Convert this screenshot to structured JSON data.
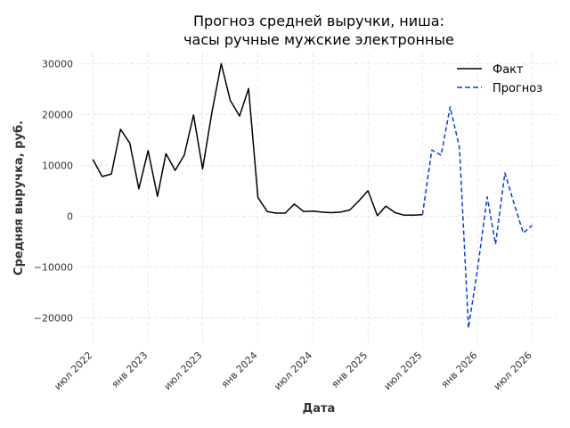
{
  "chart_data": {
    "type": "line",
    "title": [
      "Прогноз средней выручки, ниша:",
      "часы ручные мужские электронные"
    ],
    "xlabel": "Дата",
    "ylabel": "Средняя выручка, руб.",
    "ylim": [
      -25000,
      32000
    ],
    "xlim": [
      "2022-05-20",
      "2026-09-20"
    ],
    "yticks": [
      -20000,
      -10000,
      0,
      10000,
      20000,
      30000
    ],
    "ytick_labels": [
      "−20000",
      "−10000",
      "0",
      "10000",
      "20000",
      "30000"
    ],
    "xticks": [
      {
        "date": "2022-07-01",
        "label": "июл 2022"
      },
      {
        "date": "2023-01-01",
        "label": "янв 2023"
      },
      {
        "date": "2023-07-01",
        "label": "июл 2023"
      },
      {
        "date": "2024-01-01",
        "label": "янв 2024"
      },
      {
        "date": "2024-07-01",
        "label": "июл 2024"
      },
      {
        "date": "2025-01-01",
        "label": "янв 2025"
      },
      {
        "date": "2025-07-01",
        "label": "июл 2025"
      },
      {
        "date": "2026-01-01",
        "label": "янв 2026"
      },
      {
        "date": "2026-07-01",
        "label": "июл 2026"
      }
    ],
    "grid": true,
    "legend_position": "top-right",
    "series": [
      {
        "name": "Факт",
        "color": "#000000",
        "dash": "solid",
        "x": [
          "2022-07-01",
          "2022-08-01",
          "2022-09-01",
          "2022-10-01",
          "2022-11-01",
          "2022-12-01",
          "2023-01-01",
          "2023-02-01",
          "2023-03-01",
          "2023-04-01",
          "2023-05-01",
          "2023-06-01",
          "2023-07-01",
          "2023-08-01",
          "2023-09-01",
          "2023-10-01",
          "2023-11-01",
          "2023-12-01",
          "2024-01-01",
          "2024-02-01",
          "2024-03-01",
          "2024-04-01",
          "2024-05-01",
          "2024-06-01",
          "2024-07-01",
          "2024-08-01",
          "2024-09-01",
          "2024-10-01",
          "2024-11-01",
          "2024-12-01",
          "2025-01-01",
          "2025-02-01",
          "2025-03-01",
          "2025-04-01",
          "2025-05-01",
          "2025-06-01",
          "2025-07-01"
        ],
        "y": [
          11200,
          7800,
          8300,
          17100,
          14400,
          5400,
          12900,
          3900,
          12300,
          9000,
          12000,
          19900,
          9300,
          20400,
          30000,
          22800,
          19700,
          25100,
          3700,
          900,
          600,
          600,
          2400,
          900,
          1000,
          800,
          700,
          800,
          1200,
          3000,
          5000,
          100,
          2000,
          700,
          200,
          200,
          300
        ]
      },
      {
        "name": "Прогноз",
        "color": "#0a3fd0",
        "dash": "dashed",
        "x": [
          "2025-07-01",
          "2025-08-01",
          "2025-09-01",
          "2025-10-01",
          "2025-11-01",
          "2025-12-01",
          "2026-01-01",
          "2026-02-01",
          "2026-03-01",
          "2026-04-01",
          "2026-05-01",
          "2026-06-01",
          "2026-07-01",
          "2026-08-01"
        ],
        "y": [
          300,
          13000,
          12000,
          21500,
          13500,
          -22000,
          -10000,
          3800,
          -5500,
          8500,
          2600,
          -3300,
          -1800,
          null
        ]
      }
    ]
  }
}
